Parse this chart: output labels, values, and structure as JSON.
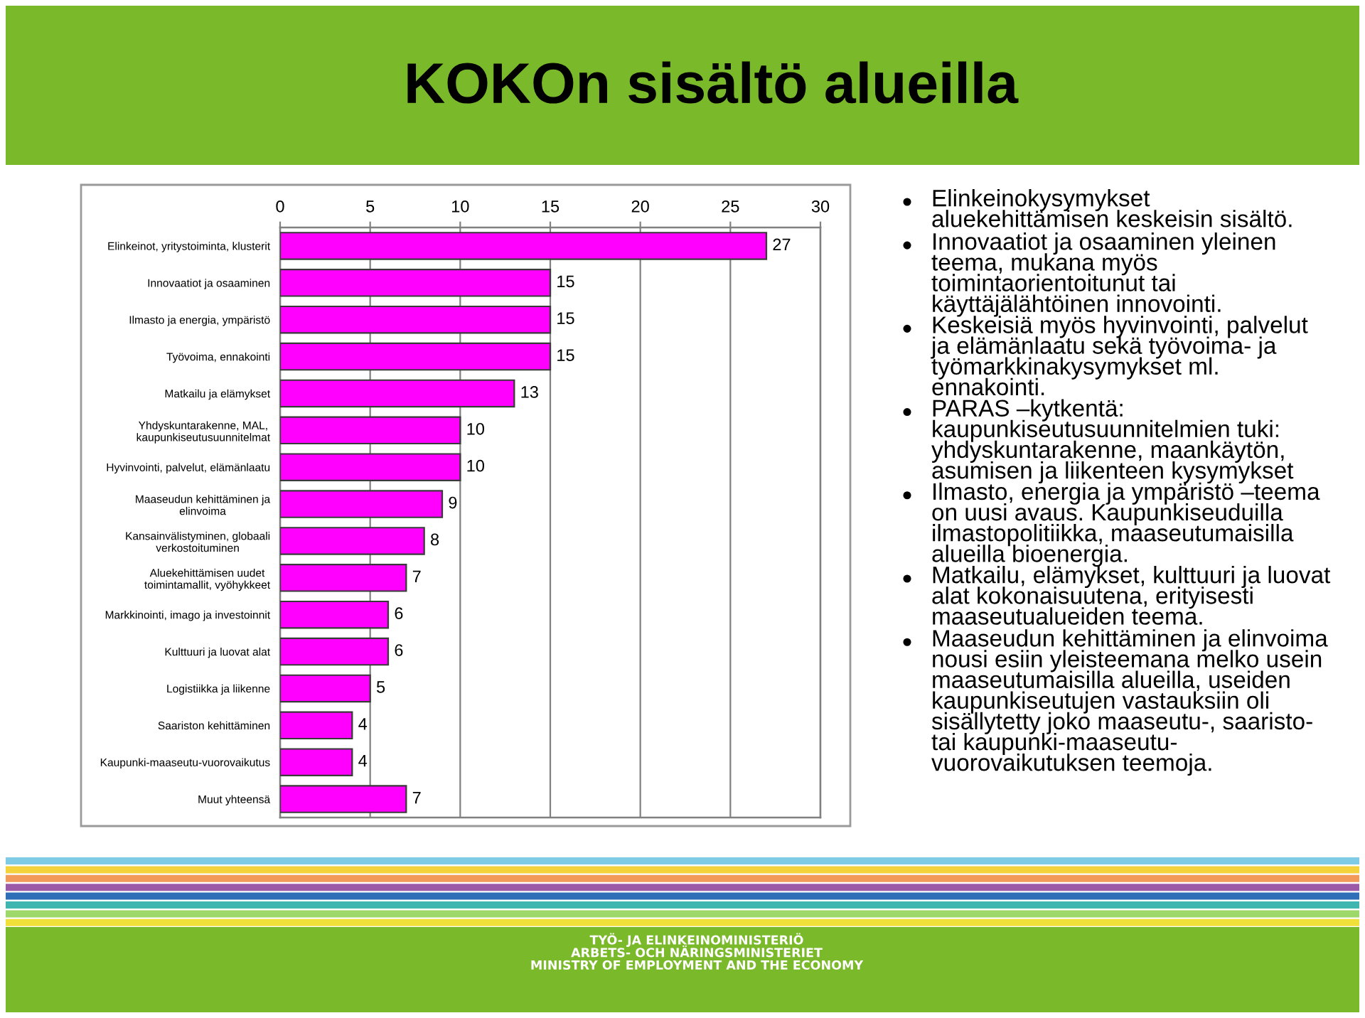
{
  "chart_data": {
    "type": "bar",
    "orientation": "horizontal",
    "title": "KOKOn sisältö alueilla",
    "categories": [
      "Elinkeinot, yritystoiminta, klusterit",
      "Innovaatiot ja osaaminen",
      "Ilmasto ja energia, ympäristö",
      "Työvoima, ennakointi",
      "Matkailu ja elämykset",
      "Yhdyskuntarakenne, MAL,\nkaupunkiseutusuunnitelmat",
      "Hyvinvointi, palvelut, elämänlaatu",
      "Maaseudun kehittäminen ja\nelinvoima",
      "Kansainvälistyminen, globaali\nverkostoituminen",
      "Aluekehittämisen uudet\ntoimintamallit, vyöhykkeet",
      "Markkinointi, imago ja investoinnit",
      "Kulttuuri ja luovat alat",
      "Logistiikka ja liikenne",
      "Saariston kehittäminen",
      "Kaupunki-maaseutu-vuorovaikutus",
      "Muut yhteensä"
    ],
    "values": [
      27,
      15,
      15,
      15,
      13,
      10,
      10,
      9,
      8,
      7,
      6,
      6,
      5,
      4,
      4,
      7
    ],
    "color": "#ff00ff",
    "xlim": [
      0,
      30
    ],
    "xticks": [
      0,
      5,
      10,
      15,
      20,
      25,
      30
    ],
    "grid": "x",
    "data_labels": true,
    "annotations": [
      "Elinkeinokysymykset\naluekehittämisen keskeisin sisältö.",
      "Innovaatiot ja osaaminen yleinen\nteema, mukana myös\ntoimintaorientoitunut tai\nkäyttäjälähtöinen innovointi.",
      "Keskeisiä myös hyvinvointi, palvelut\nja elämänlaatu sekä työvoima- ja\ntyömarkkinakysymykset ml.\nennakointi.",
      "PARAS –kytkentä:\nkaupunkiseutusuunnitelmien tuki:\nyhdyskuntarakenne, maankäytön,\nasumisen ja liikenteen kysymykset",
      "Ilmasto, energia ja ympäristö –teema\non uusi avaus. Kaupunkiseuduilla\nilmastopolitiikka, maaseutumaisilla\nalueilla bioenergia.",
      "Matkailu, elämykset, kulttuuri ja luovat\nalat kokonaisuutena, erityisesti\nmaaseutualueiden teema.",
      "Maaseudun kehittäminen ja elinvoima\nnousi esiin yleisteemana melko usein\nmaaseutumaisilla alueilla, useiden\nkaupunkiseutujen vastauksiin oli\nsisällytetty joko maaseutu-, saaristo-\ntai kaupunki-maaseutu-\nvuorovaikutuksen teemoja.",
      "TYÖ- JA ELINKEINOMINISTERIÖ\nARBETS- OCH NÄRINGSMINISTERIET\nMINISTRY OF EMPLOYMENT AND THE ECONOMY"
    ]
  }
}
